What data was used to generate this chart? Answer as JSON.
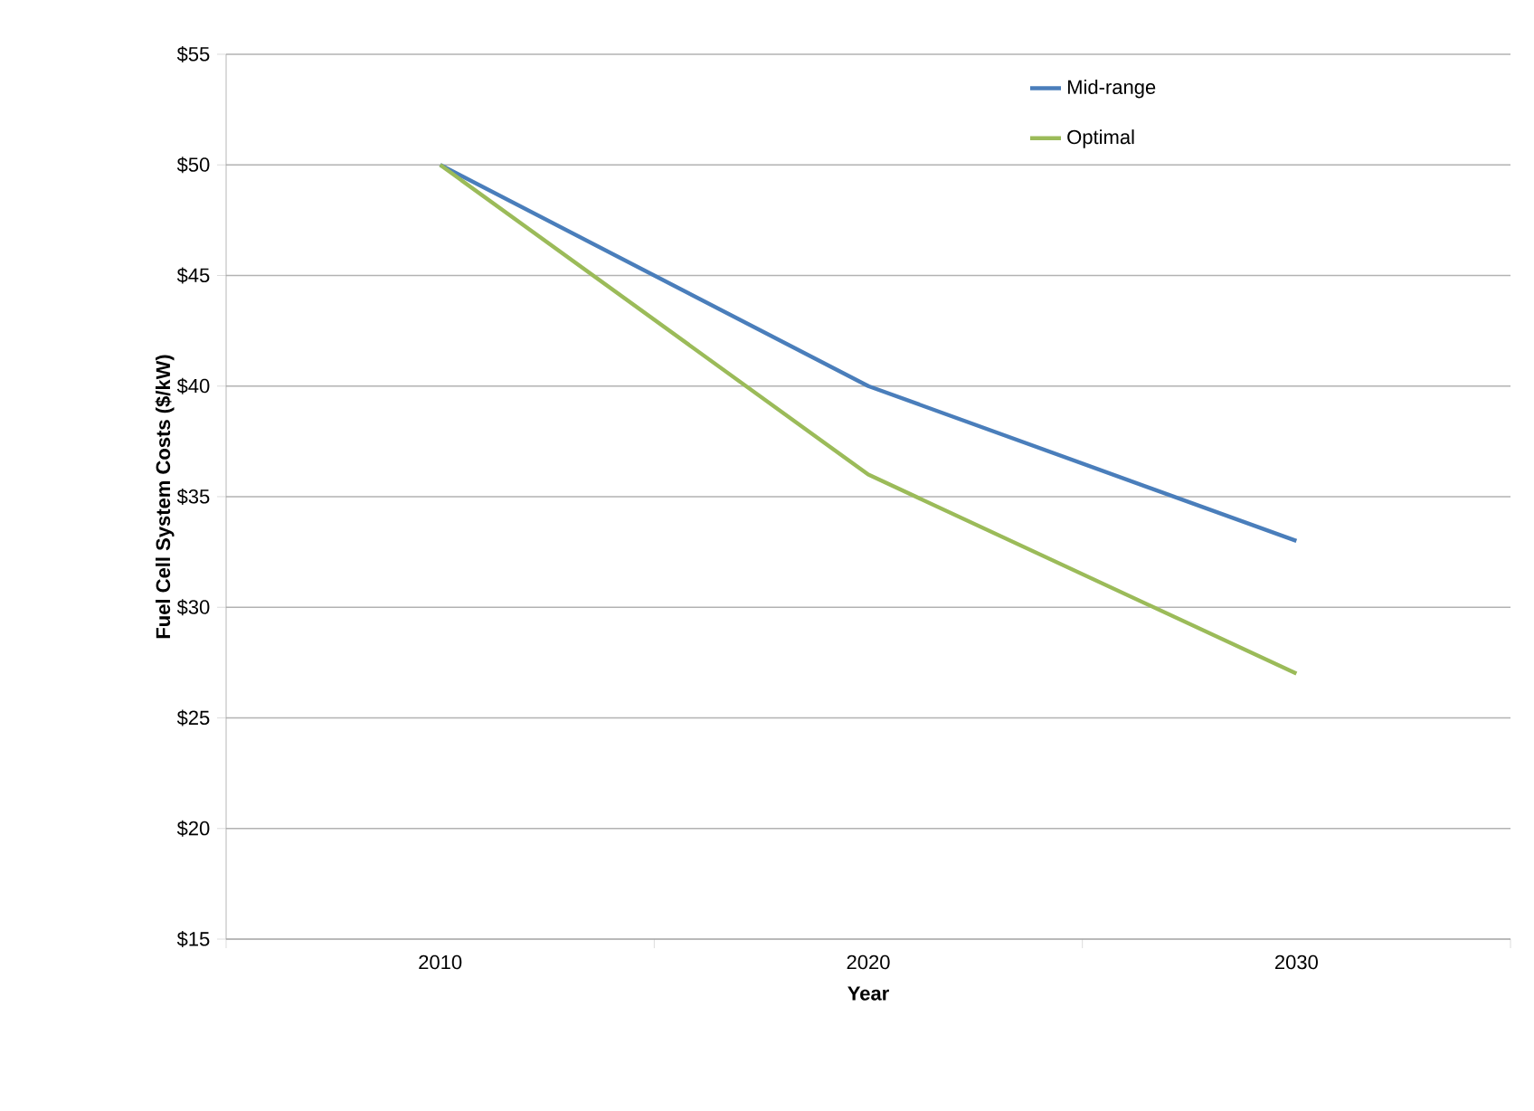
{
  "chart_data": {
    "type": "line",
    "xlabel": "Year",
    "ylabel": "Fuel Cell System Costs ($/kW)",
    "categories": [
      "2010",
      "2020",
      "2030"
    ],
    "series": [
      {
        "name": "Mid-range",
        "color": "#4a7ebb",
        "values": [
          50,
          40,
          33
        ]
      },
      {
        "name": "Optimal",
        "color": "#9bbb59",
        "values": [
          50,
          36,
          27
        ]
      }
    ],
    "ylim": [
      15,
      55
    ],
    "yticks": [
      {
        "value": 15,
        "label": "$15"
      },
      {
        "value": 20,
        "label": "$20"
      },
      {
        "value": 25,
        "label": "$25"
      },
      {
        "value": 30,
        "label": "$30"
      },
      {
        "value": 35,
        "label": "$35"
      },
      {
        "value": 40,
        "label": "$40"
      },
      {
        "value": 45,
        "label": "$45"
      },
      {
        "value": 50,
        "label": "$50"
      },
      {
        "value": 55,
        "label": "$55"
      }
    ],
    "grid": "y",
    "legend": "top right",
    "marker": "none",
    "line_style": "solid"
  }
}
